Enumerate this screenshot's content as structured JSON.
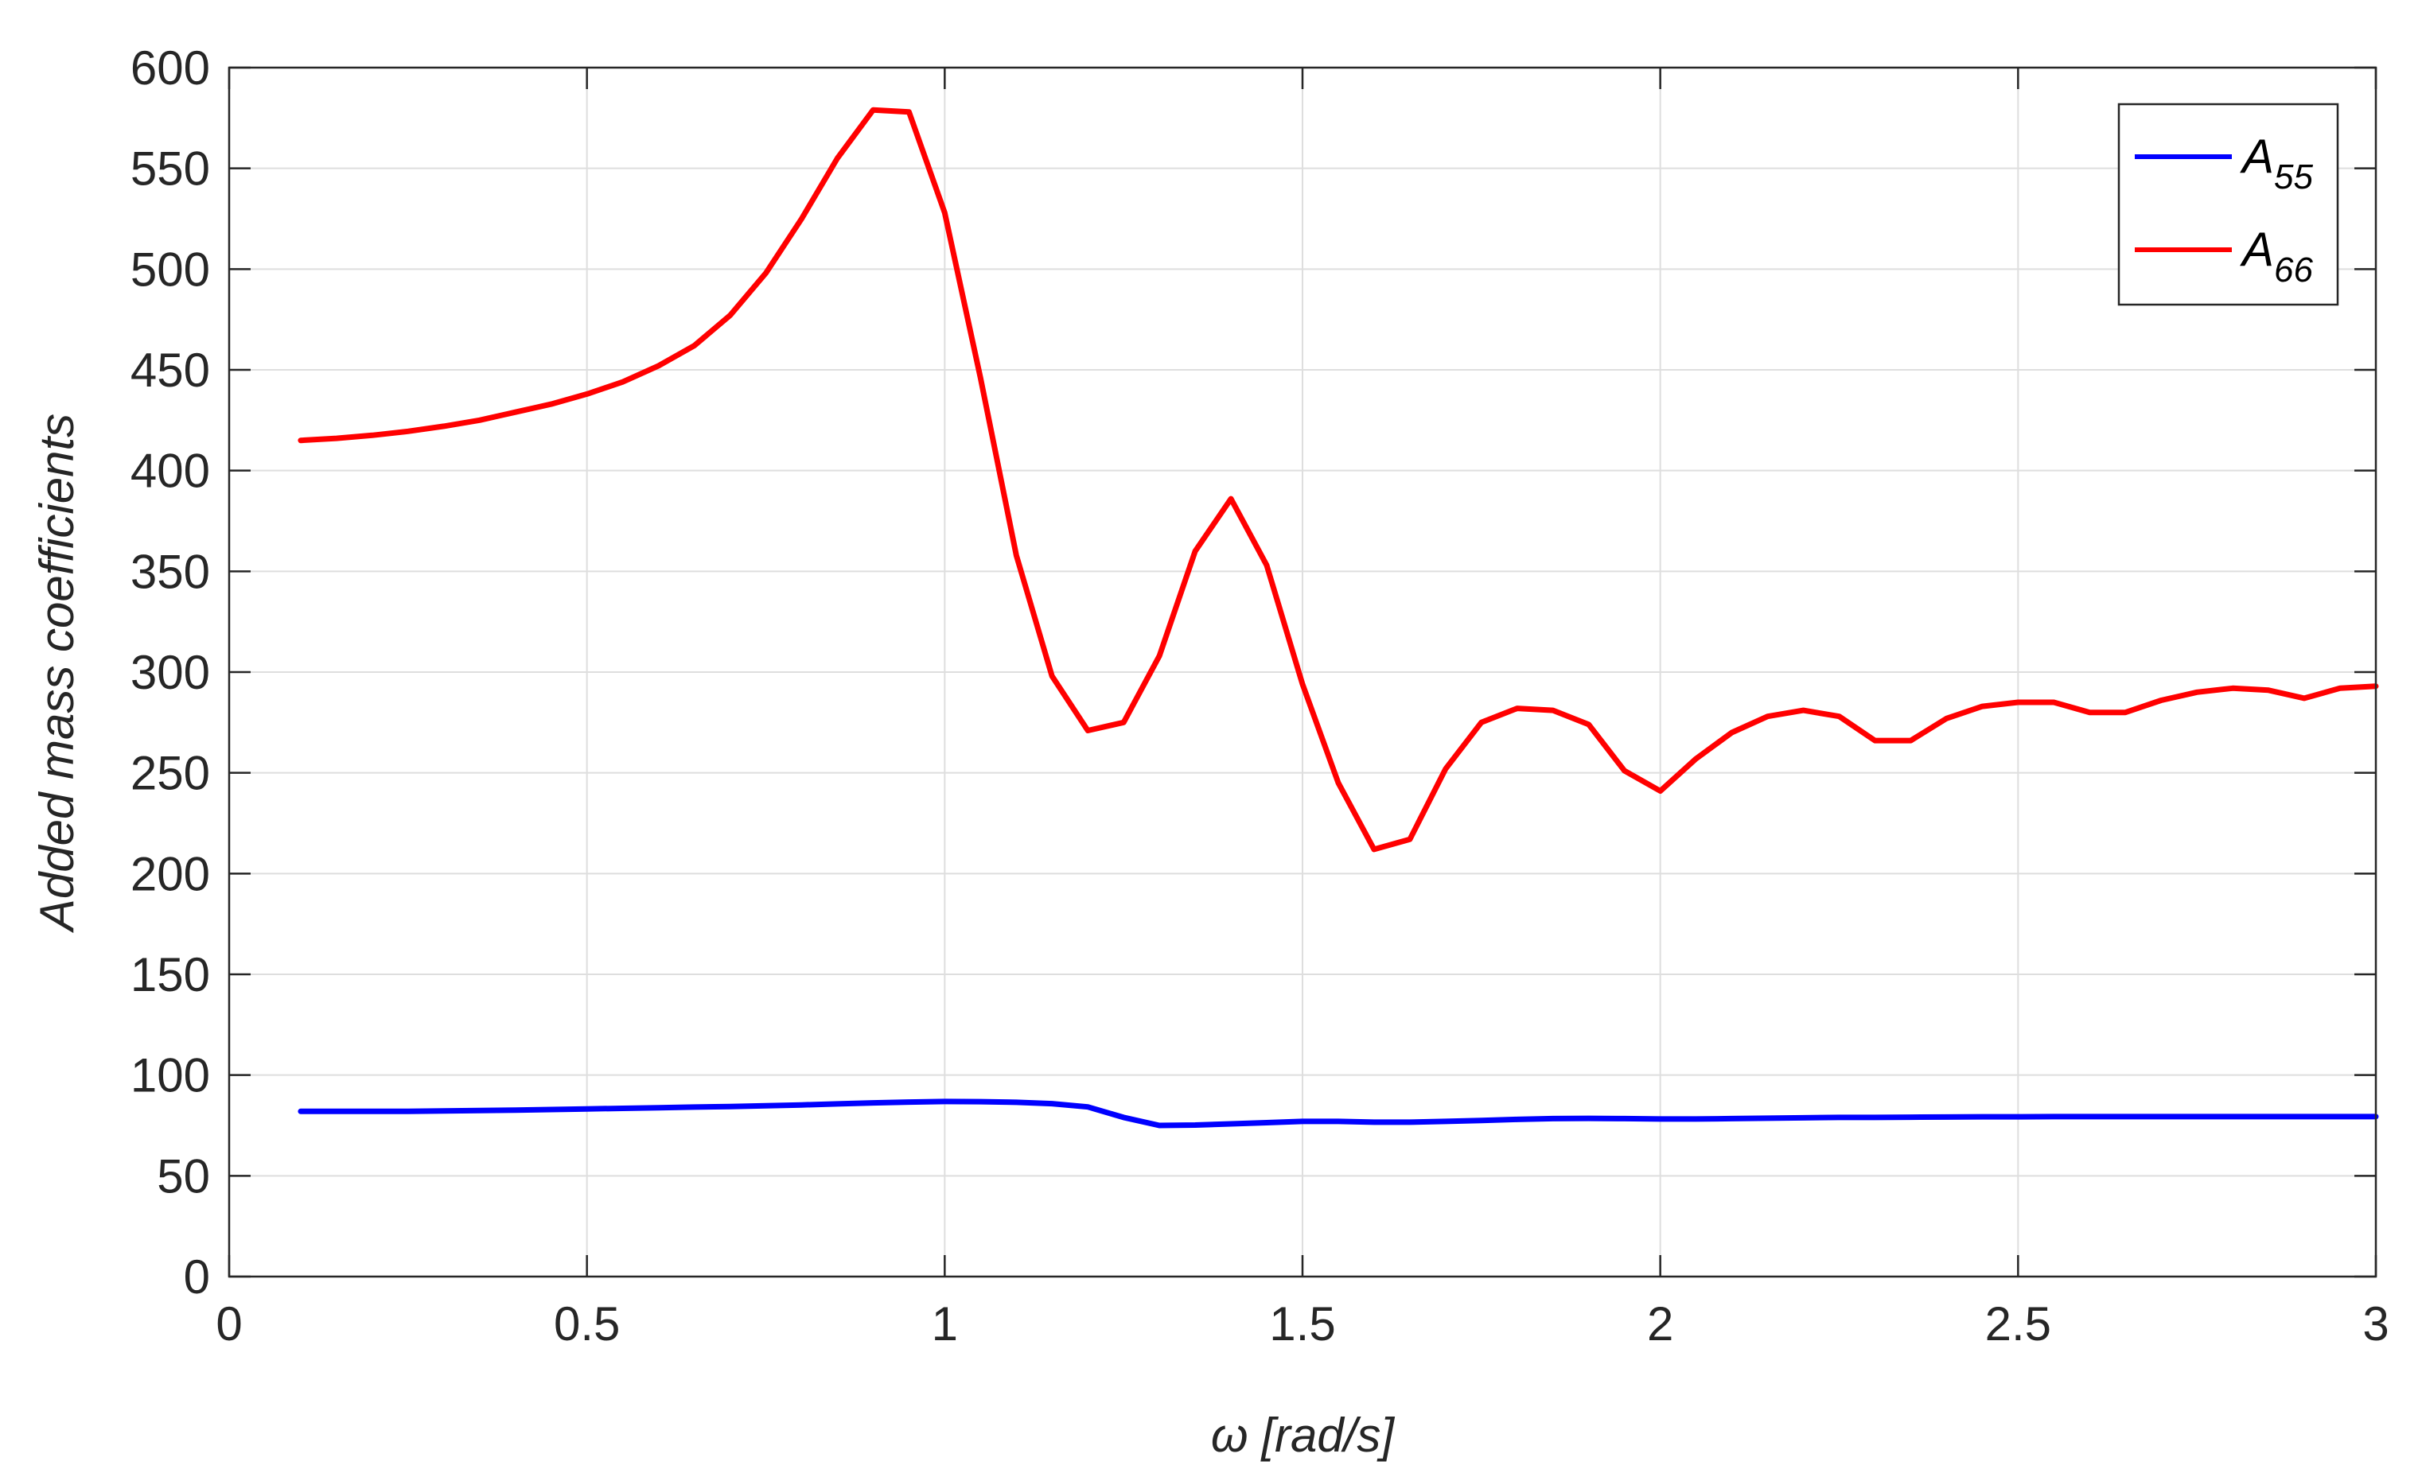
{
  "chart_data": {
    "type": "line",
    "title": "",
    "xlabel": "ω [rad/s]",
    "ylabel": "Added mass coefficients",
    "xlim": [
      0,
      3
    ],
    "ylim": [
      0,
      600
    ],
    "xticks": [
      0,
      0.5,
      1,
      1.5,
      2,
      2.5,
      3
    ],
    "yticks": [
      0,
      50,
      100,
      150,
      200,
      250,
      300,
      350,
      400,
      450,
      500,
      550,
      600
    ],
    "xtick_labels": [
      "0",
      "0.5",
      "1",
      "1.5",
      "2",
      "2.5",
      "3"
    ],
    "ytick_labels": [
      "0",
      "50",
      "100",
      "150",
      "200",
      "250",
      "300",
      "350",
      "400",
      "450",
      "500",
      "550",
      "600"
    ],
    "grid": true,
    "legend_position": "top-right",
    "x": [
      0.1,
      0.15,
      0.2,
      0.25,
      0.3,
      0.35,
      0.4,
      0.45,
      0.5,
      0.55,
      0.6,
      0.65,
      0.7,
      0.75,
      0.8,
      0.85,
      0.9,
      0.95,
      1.0,
      1.05,
      1.1,
      1.15,
      1.2,
      1.25,
      1.3,
      1.35,
      1.4,
      1.45,
      1.5,
      1.55,
      1.6,
      1.65,
      1.7,
      1.75,
      1.8,
      1.85,
      1.9,
      1.95,
      2.0,
      2.05,
      2.1,
      2.15,
      2.2,
      2.25,
      2.3,
      2.35,
      2.4,
      2.45,
      2.5,
      2.55,
      2.6,
      2.65,
      2.7,
      2.75,
      2.8,
      2.85,
      2.9,
      2.95,
      3.0
    ],
    "series": [
      {
        "name_base": "A",
        "name_sub": "55",
        "color": "#0000ff",
        "values": [
          82,
          82,
          82,
          82,
          82.2,
          82.4,
          82.6,
          82.9,
          83.2,
          83.5,
          83.8,
          84.1,
          84.4,
          84.8,
          85.2,
          85.7,
          86.2,
          86.6,
          86.9,
          86.8,
          86.5,
          85.8,
          84.2,
          79,
          75,
          75.2,
          75.8,
          76.4,
          77,
          77,
          76.6,
          76.6,
          77,
          77.5,
          78,
          78.4,
          78.5,
          78.4,
          78.2,
          78.2,
          78.4,
          78.6,
          78.8,
          79,
          79,
          79.1,
          79.2,
          79.3,
          79.3,
          79.4,
          79.4,
          79.4,
          79.4,
          79.4,
          79.4,
          79.4,
          79.4,
          79.4,
          79.4
        ]
      },
      {
        "name_base": "A",
        "name_sub": "66",
        "color": "#ff0000",
        "values": [
          415,
          416,
          417.5,
          419.5,
          422,
          425,
          429,
          433,
          438,
          444,
          452,
          462,
          477,
          498,
          525,
          555,
          579,
          578,
          528,
          446,
          358,
          298,
          271,
          275,
          308,
          360,
          386,
          353,
          294,
          245,
          212,
          217,
          252,
          275,
          282,
          281,
          274,
          251,
          241,
          257,
          270,
          278,
          281,
          278,
          266,
          266,
          277,
          283,
          285,
          285,
          280,
          280,
          286,
          290,
          292,
          291,
          287,
          292,
          293
        ]
      }
    ]
  }
}
